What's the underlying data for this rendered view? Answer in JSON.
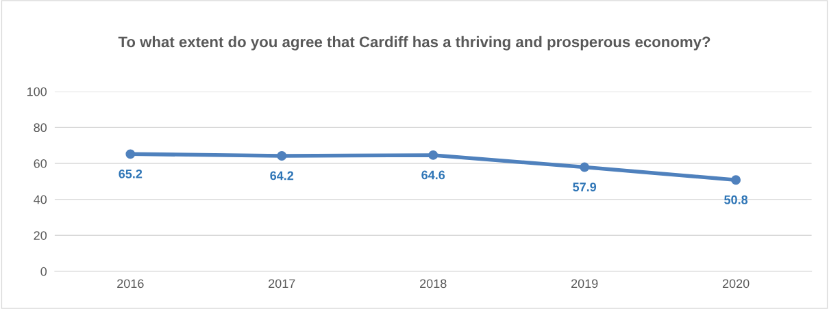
{
  "chart_data": {
    "type": "line",
    "title": "To what extent do you agree that Cardiff has a thriving and prosperous economy?",
    "categories": [
      "2016",
      "2017",
      "2018",
      "2019",
      "2020"
    ],
    "series": [
      {
        "color": "#4f81bd",
        "values": [
          65.2,
          64.2,
          64.6,
          57.9,
          50.8
        ]
      }
    ],
    "ylim": [
      0,
      100
    ],
    "yticks": [
      0,
      20,
      40,
      60,
      80,
      100
    ],
    "grid": "y",
    "marker": "circle",
    "line_style": "solid",
    "data_labels": true
  }
}
